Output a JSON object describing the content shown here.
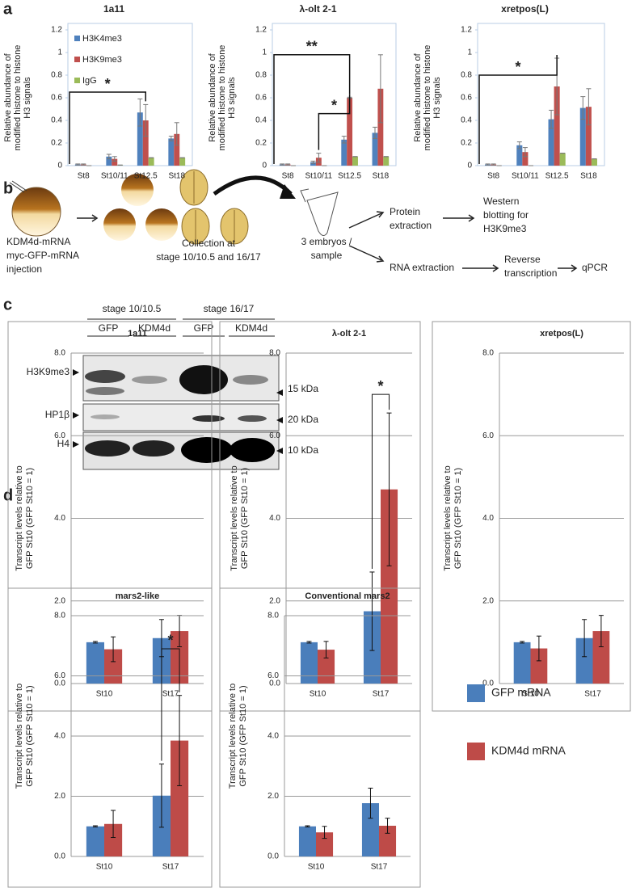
{
  "panel_labels": [
    "a",
    "b",
    "c",
    "d"
  ],
  "chart_data": [
    {
      "type": "bar",
      "title": "1a11",
      "y_label": [
        "Relative abundance of",
        "modified histone to histone",
        "H3 signals"
      ],
      "categories": [
        "St8",
        "St10/11",
        "St12.5",
        "St18"
      ],
      "series": [
        {
          "name": "H3K4me3",
          "color": "#4f81bd",
          "values": [
            0.01,
            0.08,
            0.47,
            0.24
          ],
          "errors": [
            0.005,
            0.02,
            0.12,
            0.02
          ]
        },
        {
          "name": "H3K9me3",
          "color": "#c0504d",
          "values": [
            0.01,
            0.06,
            0.4,
            0.28
          ],
          "errors": [
            0.005,
            0.02,
            0.14,
            0.1
          ]
        },
        {
          "name": "IgG",
          "color": "#9bbb59",
          "values": [
            0,
            0.005,
            0.07,
            0.07
          ],
          "errors": [
            0,
            0,
            0,
            0
          ]
        }
      ],
      "ylim": [
        0,
        1.2
      ],
      "yticks": [
        0,
        0.2,
        0.4,
        0.6,
        0.8,
        1,
        1.2
      ],
      "grid": false,
      "annotations": [
        "*"
      ]
    },
    {
      "type": "bar",
      "title": "λ-olt 2-1",
      "y_label": [
        "Relative abundance of",
        "modified histone to histone",
        "H3 signals"
      ],
      "categories": [
        "St8",
        "St10/11",
        "St12.5",
        "St18"
      ],
      "series": [
        {
          "values": [
            0.01,
            0.03,
            0.23,
            0.29
          ],
          "errors": [
            0.005,
            0.01,
            0.03,
            0.05
          ]
        },
        {
          "values": [
            0.01,
            0.07,
            0.6,
            0.68
          ],
          "errors": [
            0.005,
            0.04,
            0.005,
            0.3
          ]
        },
        {
          "values": [
            0,
            0,
            0.08,
            0.08
          ],
          "errors": [
            0,
            0,
            0,
            0
          ]
        }
      ],
      "ylim": [
        0,
        1.2
      ],
      "yticks": [
        0,
        0.2,
        0.4,
        0.6,
        0.8,
        1,
        1.2
      ],
      "grid": false,
      "annotations": [
        "**",
        "*"
      ]
    },
    {
      "type": "bar",
      "title": "xretpos(L)",
      "y_label": [
        "Relative abundance of",
        "modified histone to histone",
        "H3 signals"
      ],
      "categories": [
        "St8",
        "St10/11",
        "St12.5",
        "St18"
      ],
      "series": [
        {
          "values": [
            0.01,
            0.18,
            0.41,
            0.51
          ],
          "errors": [
            0.005,
            0.03,
            0.08,
            0.1
          ]
        },
        {
          "values": [
            0.01,
            0.12,
            0.7,
            0.52
          ],
          "errors": [
            0.005,
            0.04,
            0.25,
            0.16
          ]
        },
        {
          "values": [
            0,
            0,
            0.11,
            0.06
          ],
          "errors": [
            0,
            0,
            0,
            0
          ]
        }
      ],
      "ylim": [
        0,
        1.2
      ],
      "yticks": [
        0,
        0.2,
        0.4,
        0.6,
        0.8,
        1,
        1.2
      ],
      "grid": false,
      "annotations": [
        "*"
      ]
    },
    {
      "type": "bar",
      "title": "1a11",
      "y_label": [
        "Transcript levels relative to",
        "GFP St10 (GFP St10 = 1)"
      ],
      "categories": [
        "St10",
        "St17"
      ],
      "series": [
        {
          "name": "GFP mRNA",
          "color": "#4a7ebb",
          "values": [
            1.0,
            1.1
          ],
          "errors": [
            0.02,
            0.45
          ]
        },
        {
          "name": "KDM4d mRNA",
          "color": "#be4b48",
          "values": [
            0.83,
            1.27
          ],
          "errors": [
            0.3,
            0.38
          ]
        }
      ],
      "ylim": [
        0,
        8
      ],
      "yticks": [
        {
          "value": 0,
          "label": "0.0"
        },
        {
          "value": 2,
          "label": "2.0"
        },
        {
          "value": 4,
          "label": "4.0"
        },
        {
          "value": 6,
          "label": "6.0"
        },
        {
          "value": 8,
          "label": "8.0"
        }
      ],
      "grid": true
    },
    {
      "type": "bar",
      "title": "λ-olt 2-1",
      "y_label": [
        "Transcript levels relative to",
        "GFP St10 (GFP St10 = 1)"
      ],
      "categories": [
        "St10",
        "St17"
      ],
      "series": [
        {
          "values": [
            1.0,
            1.75
          ],
          "errors": [
            0.02,
            0.95
          ]
        },
        {
          "values": [
            0.82,
            4.7
          ],
          "errors": [
            0.2,
            1.85
          ]
        }
      ],
      "ylim": [
        0,
        8
      ],
      "yticks": [
        {
          "value": 0,
          "label": "0.0"
        },
        {
          "value": 2,
          "label": "2.0"
        },
        {
          "value": 4,
          "label": "4.0"
        },
        {
          "value": 6,
          "label": "6.0"
        },
        {
          "value": 8,
          "label": "8.0"
        }
      ],
      "grid": true,
      "annotations": [
        "*"
      ]
    },
    {
      "type": "bar",
      "title": "xretpos(L)",
      "y_label": [
        "Transcript levels relative to",
        "GFP St10 (GFP St10 = 1)"
      ],
      "categories": [
        "St10",
        "St17"
      ],
      "series": [
        {
          "values": [
            1.0,
            1.1
          ],
          "errors": [
            0.02,
            0.45
          ]
        },
        {
          "values": [
            0.85,
            1.27
          ],
          "errors": [
            0.3,
            0.38
          ]
        }
      ],
      "ylim": [
        0,
        8
      ],
      "yticks": [
        {
          "value": 0,
          "label": "0.0"
        },
        {
          "value": 2,
          "label": "2.0"
        },
        {
          "value": 4,
          "label": "4.0"
        },
        {
          "value": 6,
          "label": "6.0"
        },
        {
          "value": 8,
          "label": "8.0"
        }
      ],
      "grid": true
    },
    {
      "type": "bar",
      "title": "mars2-like",
      "y_label": [
        "Transcript levels relative to",
        "GFP St10 (GFP St10 = 1)"
      ],
      "categories": [
        "St10",
        "St17"
      ],
      "series": [
        {
          "values": [
            1.0,
            2.02
          ],
          "errors": [
            0.02,
            1.05
          ]
        },
        {
          "values": [
            1.08,
            3.85
          ],
          "errors": [
            0.45,
            1.5
          ]
        }
      ],
      "ylim": [
        0,
        8
      ],
      "yticks": [
        {
          "value": 0,
          "label": "0.0"
        },
        {
          "value": 2,
          "label": "2.0"
        },
        {
          "value": 4,
          "label": "4.0"
        },
        {
          "value": 6,
          "label": "6.0"
        },
        {
          "value": 8,
          "label": "8.0"
        }
      ],
      "grid": true,
      "annotations": [
        "*"
      ]
    },
    {
      "type": "bar",
      "title": "Conventional mars2",
      "y_label": [
        "Transcript levels relative to",
        "GFP St10 (GFP St10 = 1)"
      ],
      "categories": [
        "St10",
        "St17"
      ],
      "series": [
        {
          "values": [
            1.0,
            1.77
          ],
          "errors": [
            0.02,
            0.5
          ]
        },
        {
          "values": [
            0.8,
            1.02
          ],
          "errors": [
            0.2,
            0.25
          ]
        }
      ],
      "ylim": [
        0,
        8
      ],
      "yticks": [
        {
          "value": 0,
          "label": "0.0"
        },
        {
          "value": 2,
          "label": "2.0"
        },
        {
          "value": 4,
          "label": "4.0"
        },
        {
          "value": 6,
          "label": "6.0"
        },
        {
          "value": 8,
          "label": "8.0"
        }
      ],
      "grid": true
    }
  ],
  "diagram": {
    "injection": [
      "KDM4d-mRNA",
      "myc-GFP-mRNA",
      "injection"
    ],
    "collection": [
      "Collection at",
      "stage 10/10.5 and 16/17"
    ],
    "sample": [
      "3 embryos /",
      "sample"
    ],
    "protein": [
      "Protein",
      "extraction"
    ],
    "western": [
      "Western",
      "blotting for",
      "H3K9me3"
    ],
    "rna": [
      "RNA extraction"
    ],
    "reverse": [
      "Reverse",
      "transcription"
    ],
    "qpcr": [
      "qPCR"
    ]
  },
  "blot": {
    "stages": [
      "stage 10/10.5",
      "stage 16/17"
    ],
    "lanes": [
      "GFP",
      "KDM4d",
      "GFP",
      "KDM4d"
    ],
    "rows": [
      "H3K9me3",
      "HP1β",
      "H4"
    ],
    "sizes": [
      "15 kDa",
      "20 kDa",
      "10 kDa"
    ]
  }
}
